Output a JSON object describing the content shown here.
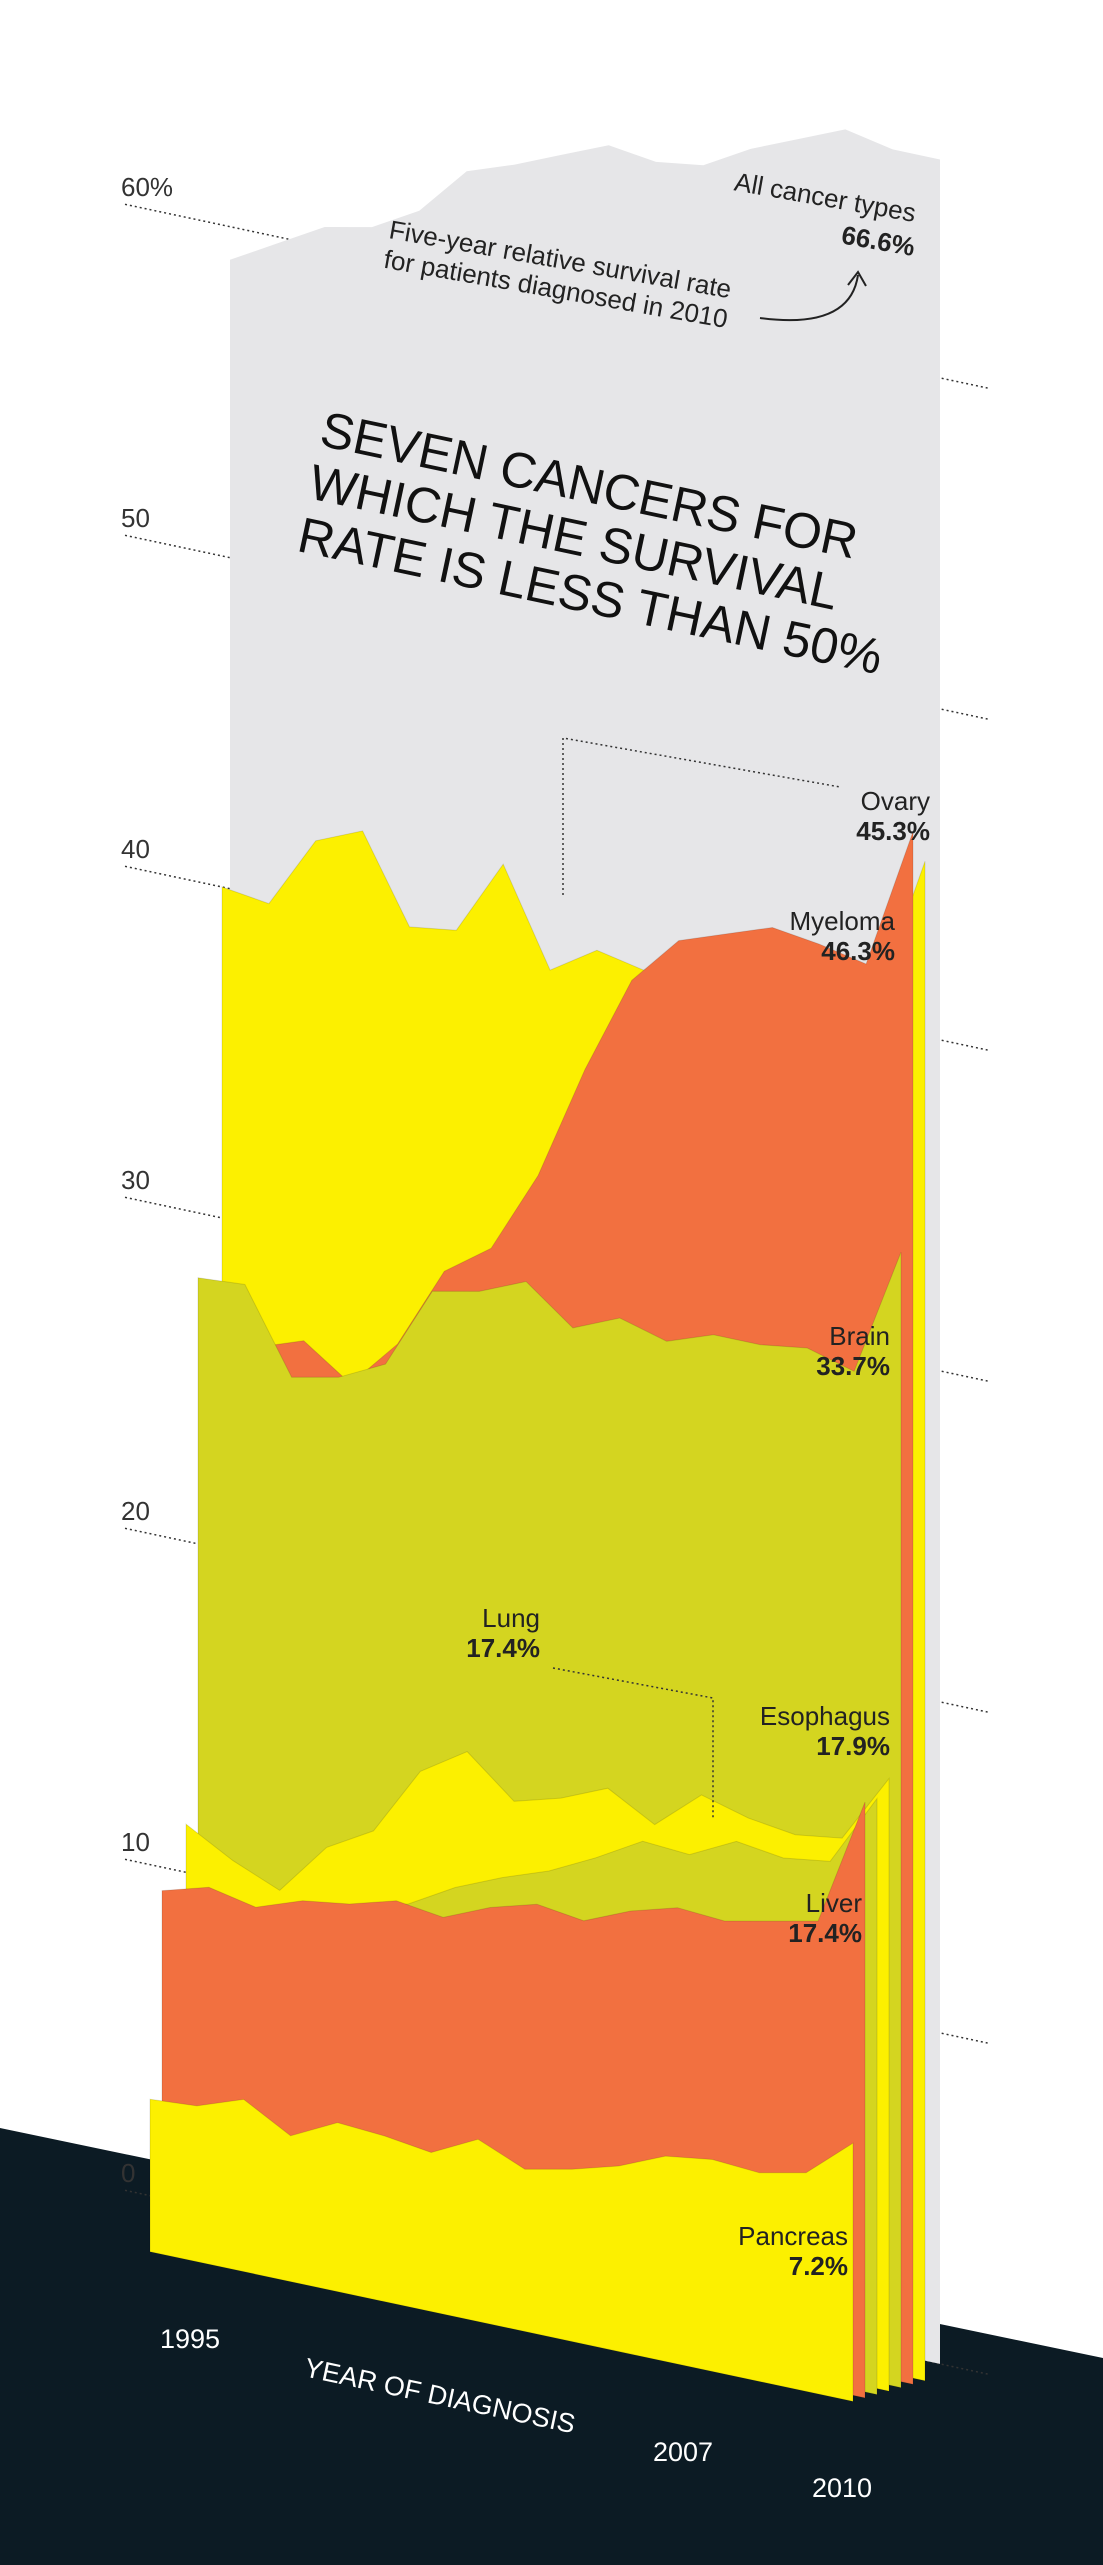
{
  "chart_data": {
    "type": "area",
    "title": "SEVEN CANCERS FOR WHICH THE SURVIVAL RATE IS LESS THAN 50%",
    "subtitle": "Five-year relative survival rate for patients diagnosed in 2010",
    "xlabel": "YEAR OF DIAGNOSIS",
    "x_ticks": [
      "1995",
      "2007",
      "2010"
    ],
    "y_ticks": [
      "60%",
      "50",
      "40",
      "30",
      "20",
      "10",
      "0"
    ],
    "ylim": [
      0,
      66
    ],
    "x": [
      1995,
      1996,
      1997,
      1998,
      1999,
      2000,
      2001,
      2002,
      2003,
      2004,
      2005,
      2006,
      2007,
      2008,
      2009,
      2010
    ],
    "total": {
      "name": "All cancer types",
      "value_label": "66.6%",
      "values": [
        59.0,
        59.8,
        60.6,
        60.9,
        61.7,
        63.2,
        63.7,
        64.3,
        64.9,
        64.7,
        64.9,
        65.7,
        66.3,
        66.9,
        66.6,
        66.6
      ]
    },
    "series": [
      {
        "name": "Ovary",
        "value_label": "45.3%",
        "color": "#FCF000",
        "values": [
          40.0,
          39.8,
          42.0,
          42.6,
          40.0,
          40.2,
          42.5,
          39.6,
          40.5,
          40.2,
          41.2,
          40.6,
          40.4,
          41.2,
          41.0,
          45.3
        ]
      },
      {
        "name": "Myeloma",
        "value_label": "46.3%",
        "color": "#F27040",
        "values": [
          28.2,
          26.5,
          27.0,
          26.0,
          27.5,
          30.0,
          31.0,
          33.5,
          37.0,
          40.0,
          41.5,
          42.0,
          42.5,
          42.3,
          42.0,
          46.3
        ]
      },
      {
        "name": "Brain",
        "value_label": "33.7%",
        "color": "#D4D520",
        "values": [
          28.4,
          28.5,
          26.0,
          26.3,
          27.0,
          29.5,
          29.8,
          30.4,
          29.3,
          29.9,
          29.5,
          30.0,
          30.0,
          30.2,
          29.8,
          33.7
        ]
      },
      {
        "name": "Esophagus",
        "value_label": "17.9%",
        "color": "#FCF000",
        "values": [
          12.0,
          11.2,
          10.6,
          12.2,
          13.0,
          15.1,
          16.0,
          14.8,
          15.2,
          15.8,
          15.0,
          16.2,
          15.8,
          15.6,
          15.8,
          17.9
        ]
      },
      {
        "name": "Lung",
        "value_label": "17.4%",
        "color": "#D4D520",
        "values": [
          9.0,
          9.5,
          10.0,
          10.5,
          10.8,
          11.2,
          12.0,
          12.6,
          13.1,
          13.8,
          14.6,
          14.5,
          15.2,
          15.0,
          15.2,
          17.4
        ]
      },
      {
        "name": "Liver",
        "value_label": "17.4%",
        "color": "#F27040",
        "values": [
          10.2,
          10.6,
          10.3,
          10.8,
          11.0,
          11.4,
          11.2,
          11.8,
          12.2,
          12.0,
          12.6,
          13.0,
          12.9,
          13.2,
          13.5,
          17.4
        ]
      },
      {
        "name": "Pancreas",
        "value_label": "7.2%",
        "color": "#FCF000",
        "values": [
          4.0,
          4.1,
          4.6,
          3.8,
          4.5,
          4.4,
          4.2,
          4.9,
          4.3,
          4.6,
          5.0,
          5.6,
          5.8,
          5.7,
          6.0,
          7.2
        ]
      }
    ],
    "background_color": "#E6E6E8",
    "floor_color": "#0C1B24",
    "grid": "dotted"
  }
}
